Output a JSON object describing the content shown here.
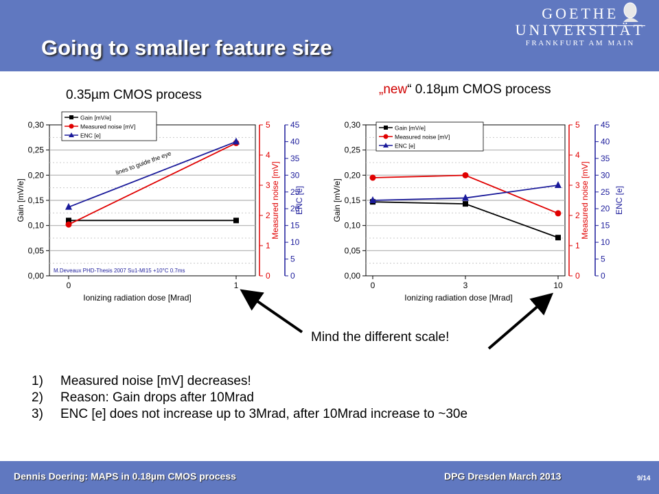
{
  "header": {
    "title": "Going to smaller feature size",
    "logo": {
      "line1": "GOETHE",
      "line2": "UNIVERSITÄT",
      "line3": "FRANKFURT AM MAIN"
    }
  },
  "subtitles": {
    "left": "0.35µm CMOS process",
    "right_quote_open": "„",
    "right_new": "new",
    "right_quote_close": "“",
    "right_rest": " 0.18µm CMOS process"
  },
  "chart_data": [
    {
      "type": "line",
      "xlabel": "Ionizing radiation dose [Mrad]",
      "categories": [
        "0",
        "1"
      ],
      "y_axes": [
        {
          "label": "Gain [mV/e]",
          "ylim": [
            0,
            0.3
          ],
          "ticks": [
            "0,00",
            "0,05",
            "0,10",
            "0,15",
            "0,20",
            "0,25",
            "0,30"
          ],
          "color": "#000000"
        },
        {
          "label": "Measured noise [mV]",
          "ylim": [
            0,
            5
          ],
          "ticks": [
            "0",
            "1",
            "2",
            "3",
            "4",
            "5"
          ],
          "color": "#e00000"
        },
        {
          "label": "ENC [e]",
          "ylim": [
            0,
            45
          ],
          "ticks": [
            "0",
            "5",
            "10",
            "15",
            "20",
            "25",
            "30",
            "35",
            "40",
            "45"
          ],
          "color": "#1a1a9a"
        }
      ],
      "series": [
        {
          "name": "Gain [mV/e]",
          "axis": 0,
          "marker": "square",
          "color": "#000000",
          "values": [
            0.11,
            0.11
          ]
        },
        {
          "name": "Measured noise [mV]",
          "axis": 1,
          "marker": "circle",
          "color": "#e00000",
          "values": [
            1.7,
            4.4
          ]
        },
        {
          "name": "ENC [e]",
          "axis": 2,
          "marker": "triangle",
          "color": "#1a1a9a",
          "values": [
            20.5,
            40
          ]
        }
      ],
      "annotations": [
        "lines to guide the eye",
        "M.Deveaux PHD-Thesis 2007  Su1-MI15 +10°C 0.7ms"
      ],
      "grid": true,
      "legend": "top-left"
    },
    {
      "type": "line",
      "xlabel": "Ionizing radiation dose [Mrad]",
      "categories": [
        "0",
        "3",
        "10"
      ],
      "y_axes": [
        {
          "label": "Gain [mV/e]",
          "ylim": [
            0,
            0.3
          ],
          "ticks": [
            "0,00",
            "0,05",
            "0,10",
            "0,15",
            "0,20",
            "0,25",
            "0,30"
          ],
          "color": "#000000"
        },
        {
          "label": "Measured noise [mV]",
          "ylim": [
            0,
            5
          ],
          "ticks": [
            "0",
            "1",
            "2",
            "3",
            "4",
            "5"
          ],
          "color": "#e00000"
        },
        {
          "label": "ENC [e]",
          "ylim": [
            0,
            45
          ],
          "ticks": [
            "0",
            "5",
            "10",
            "15",
            "20",
            "25",
            "30",
            "35",
            "40",
            "45"
          ],
          "color": "#1a1a9a"
        }
      ],
      "series": [
        {
          "name": "Gain [mV/e]",
          "axis": 0,
          "marker": "square",
          "color": "#000000",
          "values": [
            0.147,
            0.143,
            0.076
          ]
        },
        {
          "name": "Measured noise [mV]",
          "axis": 1,
          "marker": "circle",
          "color": "#e00000",
          "values": [
            3.25,
            3.33,
            2.07
          ]
        },
        {
          "name": "ENC [e]",
          "axis": 2,
          "marker": "triangle",
          "color": "#1a1a9a",
          "values": [
            22.5,
            23.2,
            27
          ]
        }
      ],
      "grid": true,
      "legend": "top-left"
    }
  ],
  "scale_note": "Mind the different scale!",
  "notes": [
    {
      "num": "1)",
      "text": "Measured noise [mV] decreases!"
    },
    {
      "num": "2)",
      "text": "Reason: Gain drops after 10Mrad"
    },
    {
      "num": "3)",
      "text": "ENC [e] does not increase up to 3Mrad, after 10Mrad increase to ~30e"
    }
  ],
  "footer": {
    "left": "Dennis Doering: MAPS in 0.18µm CMOS process",
    "middle": "DPG Dresden March 2013",
    "page": "9/14"
  }
}
